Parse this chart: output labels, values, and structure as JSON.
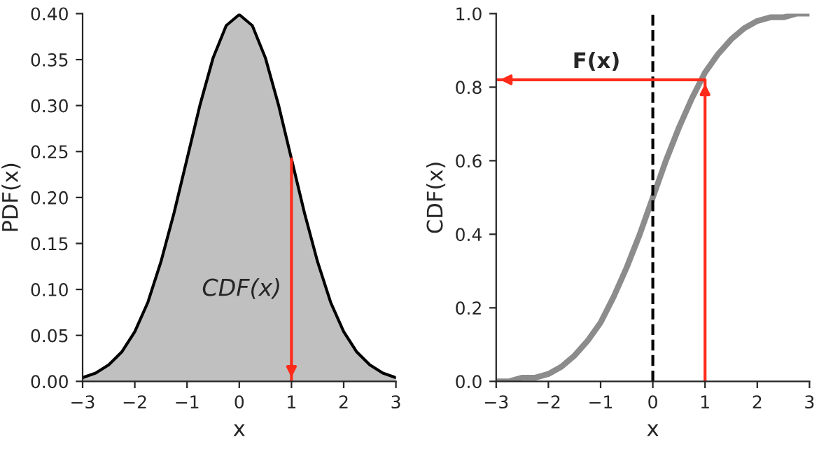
{
  "chart_data": [
    {
      "type": "area",
      "xlabel": "x",
      "ylabel": "PDF(x)",
      "x": [
        -3,
        -2.75,
        -2.5,
        -2.25,
        -2,
        -1.75,
        -1.5,
        -1.25,
        -1,
        -0.75,
        -0.5,
        -0.25,
        0,
        0.25,
        0.5,
        0.75,
        1,
        1.25,
        1.5,
        1.75,
        2,
        2.25,
        2.5,
        2.75,
        3
      ],
      "series": [
        {
          "color": "#c0c0c0",
          "values": [
            0.004,
            0.009,
            0.018,
            0.032,
            0.054,
            0.086,
            0.13,
            0.183,
            0.242,
            0.301,
            0.352,
            0.387,
            0.399,
            0.387,
            0.352,
            0.301,
            0.242,
            0.183,
            0.13,
            0.086,
            0.054,
            0.032,
            0.018,
            0.009,
            0.004
          ]
        }
      ],
      "xlim": [
        -3,
        3
      ],
      "xticks": [
        -3,
        -2,
        -1,
        0,
        1,
        2,
        3
      ],
      "ylim": [
        0,
        0.4
      ],
      "yticks": [
        {
          "value": 0,
          "label": "0.00"
        },
        {
          "value": 0.05,
          "label": "0.05"
        },
        {
          "value": 0.1,
          "label": "0.10"
        },
        {
          "value": 0.15,
          "label": "0.15"
        },
        {
          "value": 0.2,
          "label": "0.20"
        },
        {
          "value": 0.25,
          "label": "0.25"
        },
        {
          "value": 0.3,
          "label": "0.30"
        },
        {
          "value": 0.35,
          "label": "0.35"
        },
        {
          "value": 0.4,
          "label": "0.40"
        }
      ],
      "ref_lines": [
        {
          "axis": "x",
          "value": 1,
          "color": "#ff2a1a",
          "line_style": "solid"
        }
      ],
      "annotations": [
        "CDF(x)"
      ],
      "grid": false,
      "legend": false
    },
    {
      "type": "line",
      "xlabel": "x",
      "ylabel": "CDF(x)",
      "x": [
        -3,
        -2.75,
        -2.5,
        -2.25,
        -2,
        -1.75,
        -1.5,
        -1.25,
        -1,
        -0.75,
        -0.5,
        -0.25,
        0,
        0.25,
        0.5,
        0.75,
        1,
        1.25,
        1.5,
        1.75,
        2,
        2.25,
        2.5,
        2.75,
        3
      ],
      "series": [
        {
          "color": "#8c8c8c",
          "values": [
            0.0,
            0.0,
            0.01,
            0.01,
            0.02,
            0.04,
            0.07,
            0.11,
            0.16,
            0.23,
            0.31,
            0.4,
            0.5,
            0.6,
            0.69,
            0.77,
            0.84,
            0.89,
            0.93,
            0.96,
            0.98,
            0.99,
            0.99,
            1.0,
            1.0
          ]
        }
      ],
      "xlim": [
        -3,
        3
      ],
      "xticks": [
        -3,
        -2,
        -1,
        0,
        1,
        2,
        3
      ],
      "ylim": [
        0,
        1
      ],
      "yticks": [
        {
          "value": 0,
          "label": "0.0"
        },
        {
          "value": 0.2,
          "label": "0.2"
        },
        {
          "value": 0.4,
          "label": "0.4"
        },
        {
          "value": 0.6,
          "label": "0.6"
        },
        {
          "value": 0.8,
          "label": "0.8"
        },
        {
          "value": 1,
          "label": "1.0"
        }
      ],
      "ref_lines": [
        {
          "axis": "x",
          "value": 0,
          "color": "#000000",
          "line_style": "dashed"
        },
        {
          "axis": "x",
          "value": 1,
          "color": "#ff2a1a",
          "line_style": "solid"
        },
        {
          "axis": "y",
          "value": 0.82,
          "color": "#ff2a1a",
          "line_style": "solid"
        }
      ],
      "annotations": [
        "F(x)"
      ],
      "grid": false,
      "legend": false,
      "line_style": "solid"
    }
  ]
}
